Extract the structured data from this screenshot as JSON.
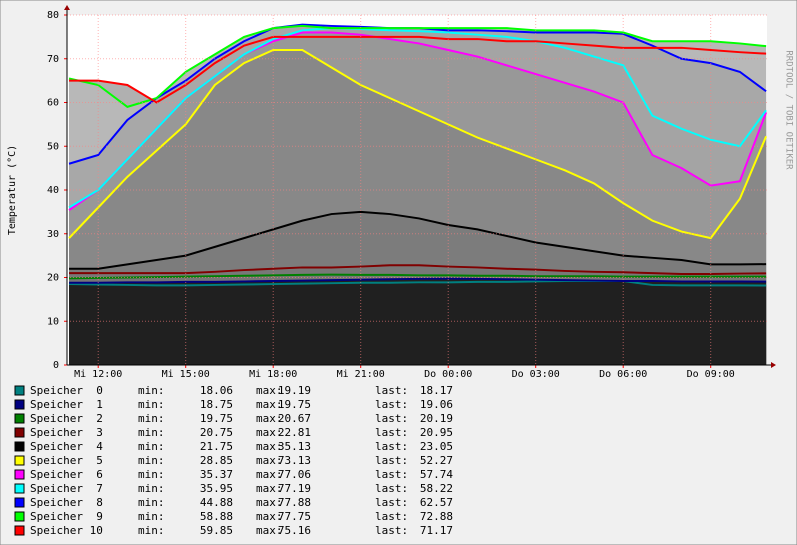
{
  "chart_data": {
    "type": "line",
    "y_label": "Temperatur (°C)",
    "watermark": "RRDTOOL / TOBI OETIKER",
    "legend_labels": {
      "min": "min:",
      "max": "max:",
      "last": "last:"
    },
    "x": [
      11,
      12,
      13,
      14,
      15,
      16,
      17,
      18,
      19,
      20,
      21,
      22,
      23,
      24,
      25,
      26,
      27,
      28,
      29,
      30,
      31,
      32,
      33,
      34,
      34.9
    ],
    "xlim": [
      10.93,
      34.93
    ],
    "xticks": [
      {
        "value": 12,
        "label": "Mi 12:00"
      },
      {
        "value": 15,
        "label": "Mi 15:00"
      },
      {
        "value": 18,
        "label": "Mi 18:00"
      },
      {
        "value": 21,
        "label": "Mi 21:00"
      },
      {
        "value": 24,
        "label": "Do 00:00"
      },
      {
        "value": 27,
        "label": "Do 03:00"
      },
      {
        "value": 30,
        "label": "Do 06:00"
      },
      {
        "value": 33,
        "label": "Do 09:00"
      }
    ],
    "ylim": [
      0,
      80
    ],
    "yticks": [
      0,
      10,
      20,
      30,
      40,
      50,
      60,
      70,
      80
    ],
    "grid": true,
    "series": [
      {
        "name": "Speicher  0",
        "color": "#008080",
        "fill": "#202020",
        "min": 18.06,
        "max": 19.19,
        "last": 18.17,
        "values": [
          18.5,
          18.4,
          18.3,
          18.2,
          18.2,
          18.3,
          18.4,
          18.5,
          18.6,
          18.7,
          18.8,
          18.8,
          18.9,
          18.9,
          19,
          19,
          19.1,
          19.2,
          19.2,
          19.19,
          18.3,
          18.2,
          18.2,
          18.2,
          18.17
        ]
      },
      {
        "name": "Speicher  1",
        "color": "#000080",
        "fill": "#202020",
        "min": 18.75,
        "max": 19.75,
        "last": 19.06,
        "values": [
          18.8,
          18.8,
          18.9,
          18.9,
          19,
          19,
          19.1,
          19.2,
          19.3,
          19.4,
          19.5,
          19.6,
          19.7,
          19.75,
          19.7,
          19.6,
          19.5,
          19.4,
          19.3,
          19.2,
          19.2,
          19.1,
          19.1,
          19.1,
          19.06
        ]
      },
      {
        "name": "Speicher  2",
        "color": "#008000",
        "fill": "#767676",
        "min": 19.75,
        "max": 20.67,
        "last": 20.19,
        "values": [
          19.8,
          19.9,
          20,
          20.1,
          20.2,
          20.3,
          20.4,
          20.5,
          20.6,
          20.67,
          20.6,
          20.6,
          20.5,
          20.5,
          20.4,
          20.4,
          20.3,
          20.3,
          20.3,
          20.2,
          20.2,
          20.2,
          20.2,
          20.2,
          20.19
        ]
      },
      {
        "name": "Speicher  3",
        "color": "#800000",
        "fill": "#787878",
        "min": 20.75,
        "max": 22.81,
        "last": 20.95,
        "values": [
          21,
          21,
          21,
          21,
          21,
          21.3,
          21.7,
          22,
          22.3,
          22.3,
          22.5,
          22.8,
          22.8,
          22.5,
          22.3,
          22,
          21.8,
          21.5,
          21.3,
          21.2,
          21,
          20.8,
          20.8,
          20.9,
          20.95
        ]
      },
      {
        "name": "Speicher  4",
        "color": "#000000",
        "fill": "#7c7c7c",
        "min": 21.75,
        "max": 35.13,
        "last": 23.05,
        "values": [
          22,
          22,
          23,
          24,
          25,
          27,
          29,
          31,
          33,
          34.5,
          35,
          34.5,
          33.5,
          32,
          31,
          29.5,
          28,
          27,
          26,
          25,
          24.5,
          24,
          23,
          23,
          23.05
        ]
      },
      {
        "name": "Speicher  5",
        "color": "#ffff00",
        "fill": "#888888",
        "min": 28.85,
        "max": 73.13,
        "last": 52.27,
        "values": [
          29,
          36,
          43,
          49,
          55,
          64,
          69,
          72,
          72,
          68,
          64,
          61,
          58,
          55,
          52,
          49.5,
          47,
          44.5,
          41.5,
          37,
          33,
          30.5,
          29,
          38,
          52.27
        ]
      },
      {
        "name": "Speicher  6",
        "color": "#ff00ff",
        "fill": "#989898",
        "min": 35.37,
        "max": 77.06,
        "last": 57.74,
        "values": [
          35.4,
          40,
          47,
          54,
          61,
          66,
          71,
          74,
          76,
          76,
          75.5,
          74.5,
          73.5,
          72,
          70.5,
          68.5,
          66.5,
          64.5,
          62.5,
          60,
          48,
          45,
          41,
          42,
          57.74
        ]
      },
      {
        "name": "Speicher  7",
        "color": "#00ffff",
        "fill": "#a4a4a4",
        "min": 35.95,
        "max": 77.19,
        "last": 58.22,
        "values": [
          36,
          40,
          47,
          54,
          61,
          66,
          71,
          74.5,
          76.5,
          77,
          76.8,
          76.5,
          76.3,
          76,
          75.5,
          75,
          74,
          72.5,
          70.5,
          68.5,
          57,
          54,
          51.5,
          50,
          58.22
        ]
      },
      {
        "name": "Speicher  8",
        "color": "#0000ff",
        "fill": "#a8a8a8",
        "min": 44.88,
        "max": 77.88,
        "last": 62.57,
        "values": [
          46,
          48,
          56,
          61,
          65,
          70,
          74,
          77,
          77.8,
          77.5,
          77.3,
          77,
          77,
          76.5,
          76.5,
          76.3,
          76,
          76,
          76,
          75.7,
          73,
          70,
          69,
          67,
          62.57
        ]
      },
      {
        "name": "Speicher  9",
        "color": "#00ff00",
        "fill": "#b8b8b8",
        "min": 58.88,
        "max": 77.75,
        "last": 72.88,
        "values": [
          65.5,
          64,
          59,
          61,
          67,
          71,
          75,
          77,
          77.5,
          77,
          77,
          77,
          77,
          77,
          77,
          77,
          76.5,
          76.5,
          76.5,
          76,
          74,
          74,
          74,
          73.5,
          72.88
        ]
      },
      {
        "name": "Speicher 10",
        "color": "#ff0000",
        "fill": "#b0b0b0",
        "min": 59.85,
        "max": 75.16,
        "last": 71.17,
        "values": [
          65,
          65,
          64,
          60,
          64,
          69,
          73,
          75,
          75,
          75,
          75,
          75,
          75,
          74.5,
          74.5,
          74,
          74,
          73.5,
          73,
          72.5,
          72.5,
          72.5,
          72,
          71.5,
          71.17
        ]
      }
    ]
  }
}
